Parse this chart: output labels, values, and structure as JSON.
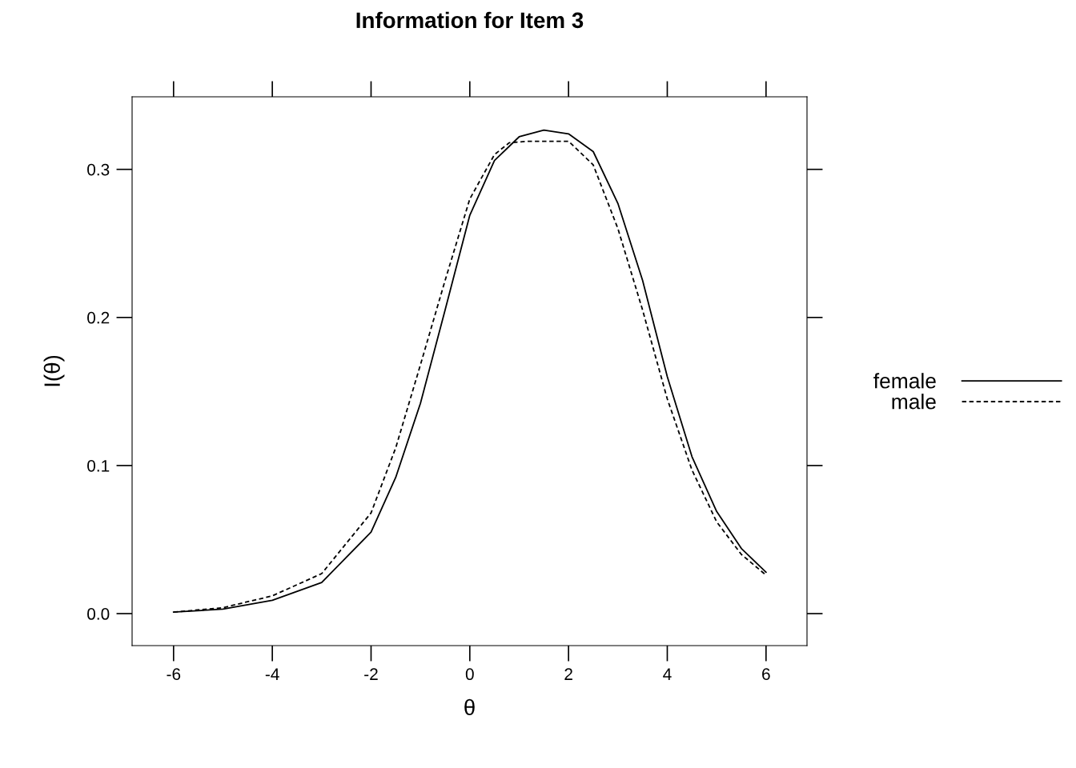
{
  "chart_data": {
    "type": "line",
    "title": "Information for Item 3",
    "xlabel": "θ",
    "ylabel": "I(θ)",
    "xlim": [
      -6.84,
      6.83
    ],
    "ylim": [
      -0.0216,
      0.349
    ],
    "xticks": [
      -6,
      -4,
      -2,
      0,
      2,
      4,
      6
    ],
    "yticks": [
      {
        "value": 0,
        "label": "0.0"
      },
      0.1,
      0.2,
      0.3
    ],
    "grid": false,
    "legend": "right",
    "marker": "none",
    "series": [
      {
        "name": "female",
        "color": "#000000",
        "line_style": "solid",
        "x": [
          -6,
          -5,
          -4,
          -3,
          -2,
          -1.5,
          -1,
          -0.5,
          0,
          0.5,
          1,
          1.5,
          2,
          2.5,
          3,
          3.5,
          4,
          4.5,
          5,
          5.5,
          6
        ],
        "values": [
          0.001,
          0.003,
          0.009,
          0.021,
          0.055,
          0.092,
          0.142,
          0.205,
          0.269,
          0.306,
          0.322,
          0.3265,
          0.324,
          0.312,
          0.277,
          0.225,
          0.16,
          0.106,
          0.069,
          0.044,
          0.028
        ]
      },
      {
        "name": "male",
        "color": "#000000",
        "line_style": "dashed",
        "x": [
          -6,
          -5,
          -4,
          -3,
          -2,
          -1.5,
          -1,
          -0.5,
          0,
          0.5,
          0.8,
          1.2,
          2,
          2.5,
          3,
          3.5,
          4,
          4.5,
          5,
          5.5,
          6
        ],
        "values": [
          0.001,
          0.004,
          0.012,
          0.027,
          0.068,
          0.112,
          0.168,
          0.225,
          0.28,
          0.31,
          0.318,
          0.319,
          0.319,
          0.303,
          0.26,
          0.205,
          0.145,
          0.097,
          0.062,
          0.04,
          0.026
        ]
      }
    ]
  }
}
